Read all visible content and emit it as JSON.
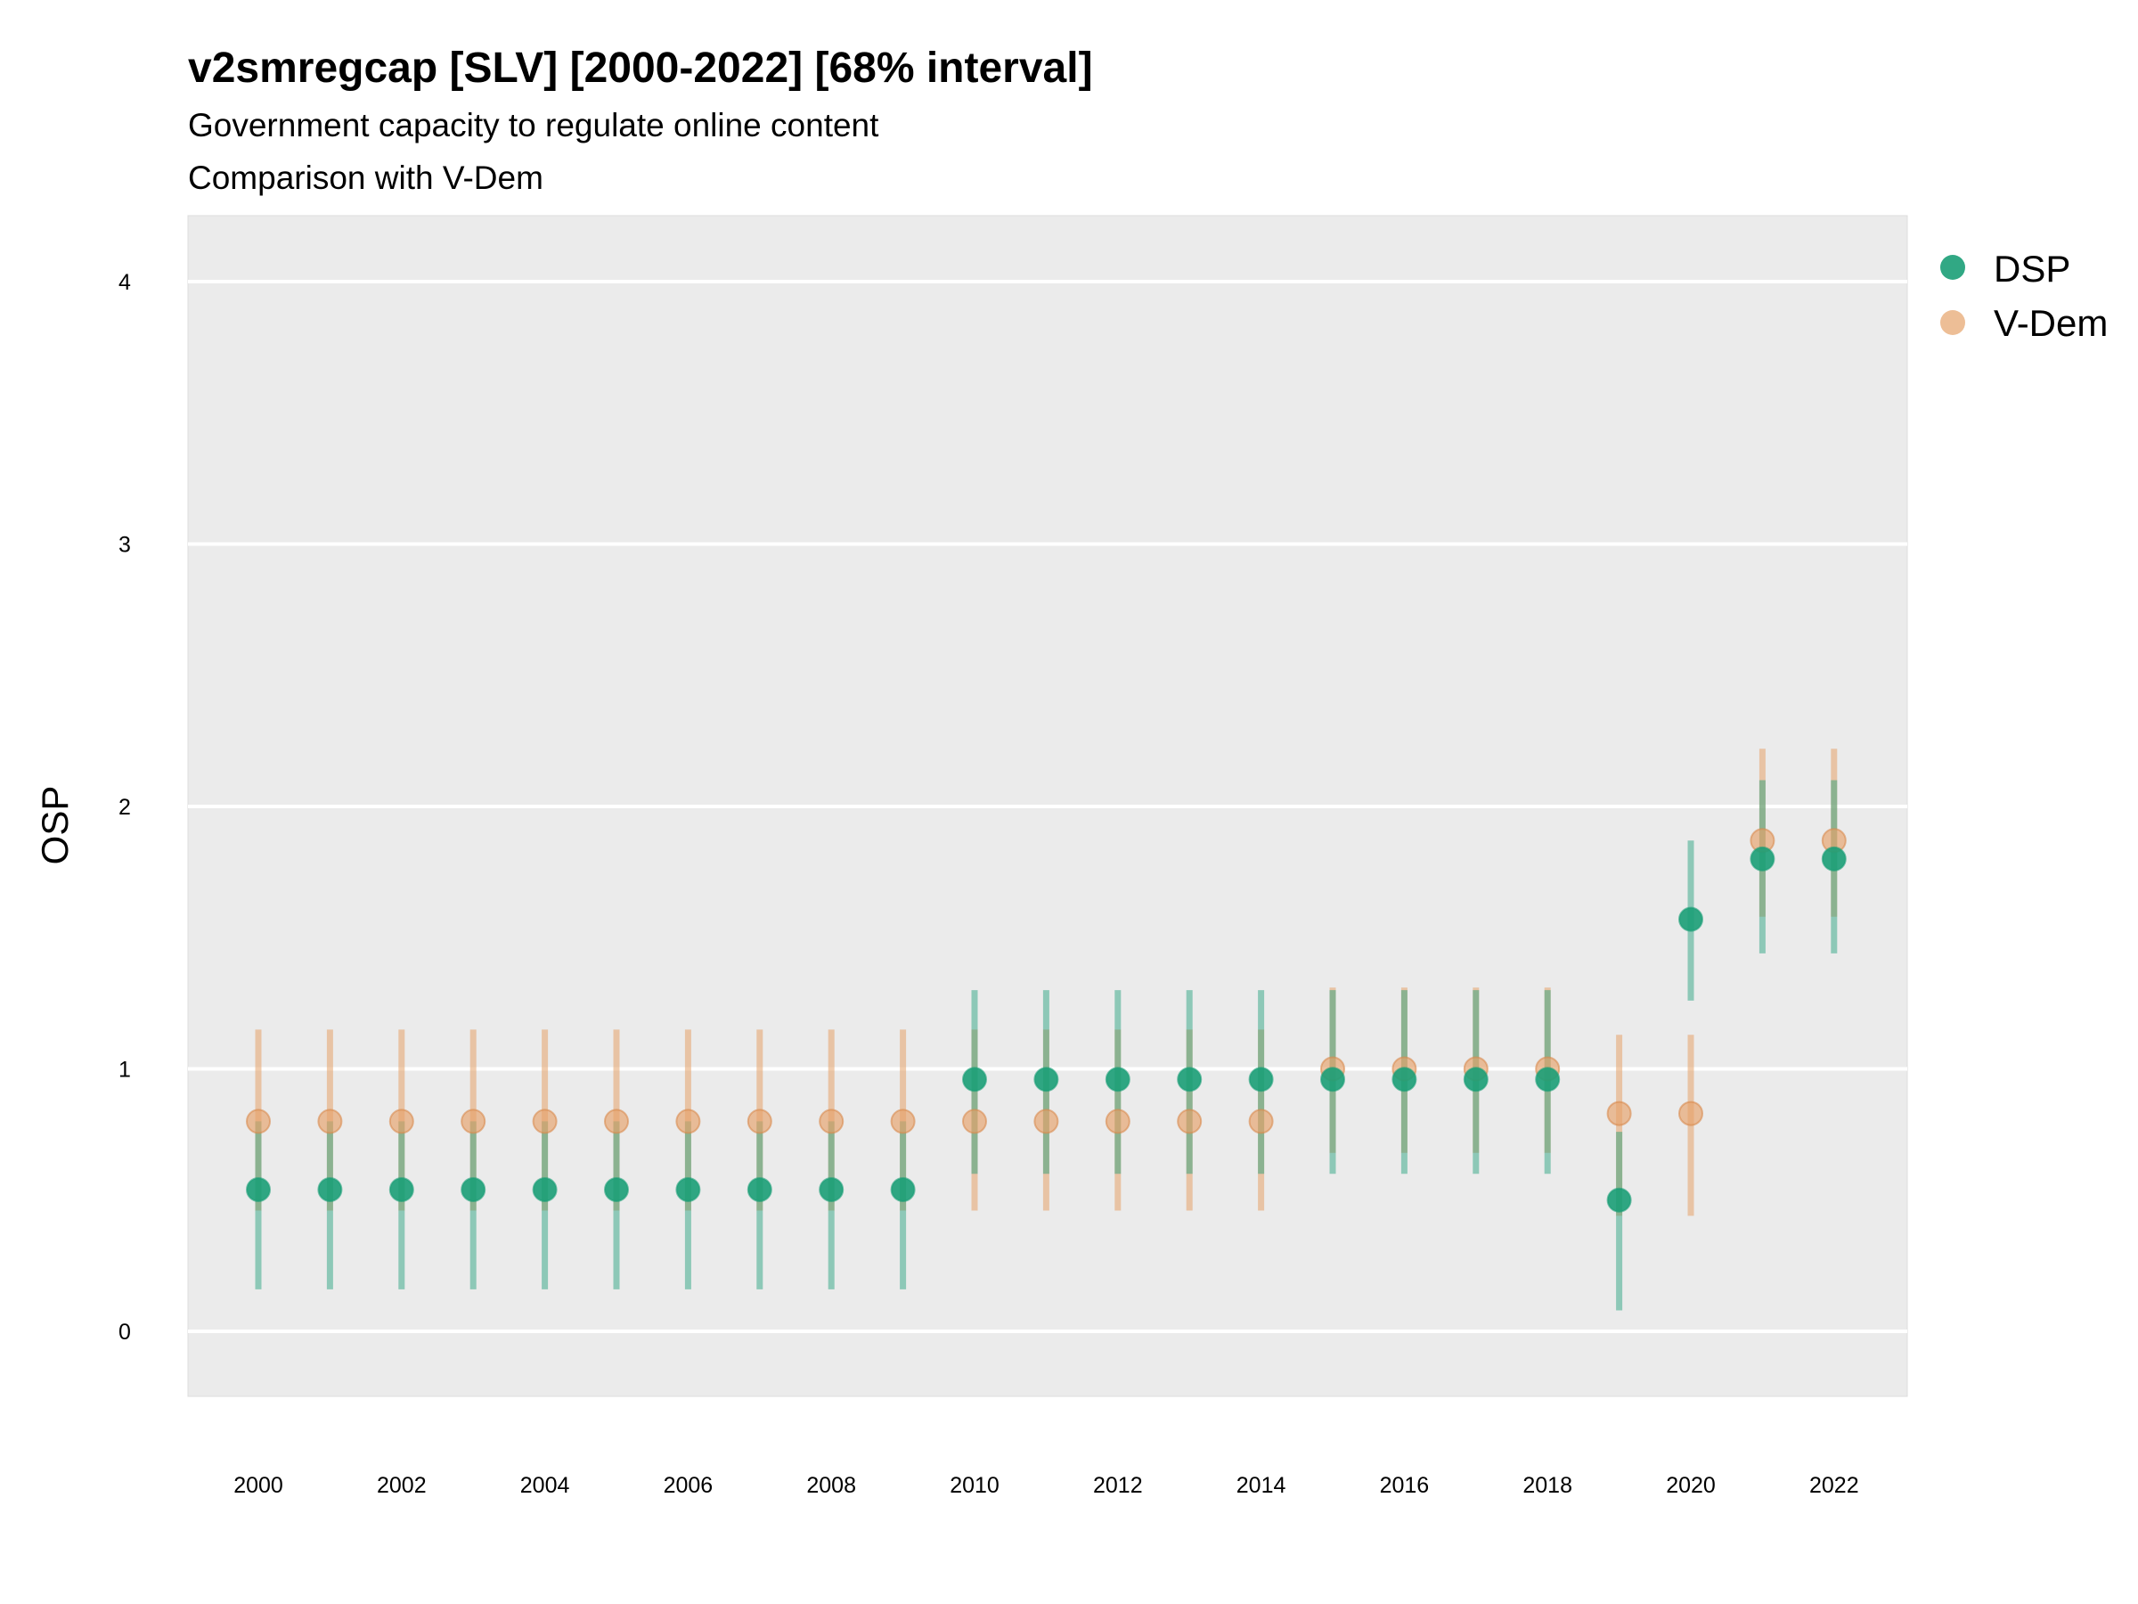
{
  "chart_data": {
    "type": "scatter",
    "title": "v2smregcap [SLV] [2000-2022] [68% interval]",
    "subtitle": "Government capacity to regulate online content",
    "subtitle2": "Comparison with V-Dem",
    "xlabel": "",
    "ylabel": "OSP",
    "ylim": [
      -0.25,
      4.25
    ],
    "yticks": [
      0,
      1,
      2,
      3,
      4
    ],
    "xticks": [
      2000,
      2002,
      2004,
      2006,
      2008,
      2010,
      2012,
      2014,
      2016,
      2018,
      2020,
      2022
    ],
    "grid": true,
    "legend_position": "right",
    "x": [
      2000,
      2001,
      2002,
      2003,
      2004,
      2005,
      2006,
      2007,
      2008,
      2009,
      2010,
      2011,
      2012,
      2013,
      2014,
      2015,
      2016,
      2017,
      2018,
      2019,
      2020,
      2021,
      2022
    ],
    "series": [
      {
        "name": "DSP",
        "color": "#1b9e77",
        "values": [
          0.54,
          0.54,
          0.54,
          0.54,
          0.54,
          0.54,
          0.54,
          0.54,
          0.54,
          0.54,
          0.96,
          0.96,
          0.96,
          0.96,
          0.96,
          0.96,
          0.96,
          0.96,
          0.96,
          0.5,
          1.57,
          1.8,
          1.8
        ],
        "lower": [
          0.16,
          0.16,
          0.16,
          0.16,
          0.16,
          0.16,
          0.16,
          0.16,
          0.16,
          0.16,
          0.6,
          0.6,
          0.6,
          0.6,
          0.6,
          0.6,
          0.6,
          0.6,
          0.6,
          0.08,
          1.26,
          1.44,
          1.44
        ],
        "upper": [
          0.8,
          0.8,
          0.8,
          0.8,
          0.8,
          0.8,
          0.8,
          0.8,
          0.8,
          0.8,
          1.3,
          1.3,
          1.3,
          1.3,
          1.3,
          1.3,
          1.3,
          1.3,
          1.3,
          0.76,
          1.87,
          2.1,
          2.1
        ]
      },
      {
        "name": "V-Dem",
        "color": "#e6a26a",
        "values": [
          0.8,
          0.8,
          0.8,
          0.8,
          0.8,
          0.8,
          0.8,
          0.8,
          0.8,
          0.8,
          0.8,
          0.8,
          0.8,
          0.8,
          0.8,
          1.0,
          1.0,
          1.0,
          1.0,
          0.83,
          0.83,
          1.87,
          1.87
        ],
        "lower": [
          0.46,
          0.46,
          0.46,
          0.46,
          0.46,
          0.46,
          0.46,
          0.46,
          0.46,
          0.46,
          0.46,
          0.46,
          0.46,
          0.46,
          0.46,
          0.68,
          0.68,
          0.68,
          0.68,
          0.44,
          0.44,
          1.58,
          1.58
        ],
        "upper": [
          1.15,
          1.15,
          1.15,
          1.15,
          1.15,
          1.15,
          1.15,
          1.15,
          1.15,
          1.15,
          1.15,
          1.15,
          1.15,
          1.15,
          1.15,
          1.31,
          1.31,
          1.31,
          1.31,
          1.13,
          1.13,
          2.22,
          2.22
        ]
      }
    ]
  }
}
